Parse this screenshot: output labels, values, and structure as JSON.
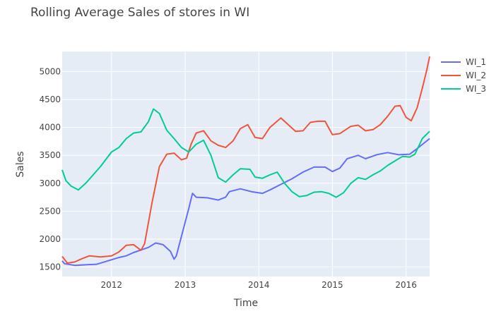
{
  "chart_data": {
    "type": "line",
    "title": "Rolling Average Sales of stores in WI",
    "xlabel": "Time",
    "ylabel": "Sales",
    "xlim": [
      2011.33,
      2016.32
    ],
    "ylim": [
      1330,
      5360
    ],
    "xticks": [
      2012,
      2013,
      2014,
      2015,
      2016
    ],
    "xtick_labels": [
      "2012",
      "2013",
      "2014",
      "2015",
      "2016"
    ],
    "yticks": [
      1500,
      2000,
      2500,
      3000,
      3500,
      4000,
      4500,
      5000
    ],
    "ytick_labels": [
      "1500",
      "2000",
      "2500",
      "3000",
      "3500",
      "4000",
      "4500",
      "5000"
    ],
    "grid": true,
    "legend_position": "top-right",
    "background": "#E5ECF6",
    "series": [
      {
        "name": "WI_1",
        "color": "#636EFA",
        "points": [
          [
            2011.33,
            1610
          ],
          [
            2011.36,
            1560
          ],
          [
            2011.5,
            1530
          ],
          [
            2011.8,
            1550
          ],
          [
            2011.9,
            1590
          ],
          [
            2012.1,
            1670
          ],
          [
            2012.2,
            1700
          ],
          [
            2012.3,
            1760
          ],
          [
            2012.5,
            1850
          ],
          [
            2012.6,
            1930
          ],
          [
            2012.7,
            1900
          ],
          [
            2012.8,
            1780
          ],
          [
            2012.85,
            1640
          ],
          [
            2012.88,
            1700
          ],
          [
            2012.95,
            2050
          ],
          [
            2013.05,
            2550
          ],
          [
            2013.1,
            2820
          ],
          [
            2013.15,
            2750
          ],
          [
            2013.3,
            2740
          ],
          [
            2013.45,
            2700
          ],
          [
            2013.55,
            2750
          ],
          [
            2013.6,
            2850
          ],
          [
            2013.75,
            2900
          ],
          [
            2013.9,
            2850
          ],
          [
            2014.05,
            2820
          ],
          [
            2014.15,
            2880
          ],
          [
            2014.3,
            2980
          ],
          [
            2014.45,
            3080
          ],
          [
            2014.6,
            3200
          ],
          [
            2014.75,
            3290
          ],
          [
            2014.9,
            3290
          ],
          [
            2015.0,
            3210
          ],
          [
            2015.1,
            3270
          ],
          [
            2015.2,
            3440
          ],
          [
            2015.35,
            3500
          ],
          [
            2015.45,
            3440
          ],
          [
            2015.6,
            3510
          ],
          [
            2015.75,
            3550
          ],
          [
            2015.9,
            3510
          ],
          [
            2016.05,
            3520
          ],
          [
            2016.15,
            3620
          ],
          [
            2016.32,
            3800
          ]
        ]
      },
      {
        "name": "WI_2",
        "color": "#EF553B",
        "points": [
          [
            2011.33,
            1690
          ],
          [
            2011.4,
            1570
          ],
          [
            2011.5,
            1590
          ],
          [
            2011.6,
            1650
          ],
          [
            2011.7,
            1700
          ],
          [
            2011.85,
            1680
          ],
          [
            2012.0,
            1700
          ],
          [
            2012.1,
            1770
          ],
          [
            2012.2,
            1890
          ],
          [
            2012.3,
            1900
          ],
          [
            2012.4,
            1800
          ],
          [
            2012.45,
            1920
          ],
          [
            2012.55,
            2650
          ],
          [
            2012.65,
            3300
          ],
          [
            2012.75,
            3520
          ],
          [
            2012.85,
            3540
          ],
          [
            2012.95,
            3420
          ],
          [
            2013.02,
            3450
          ],
          [
            2013.08,
            3700
          ],
          [
            2013.15,
            3900
          ],
          [
            2013.25,
            3940
          ],
          [
            2013.35,
            3760
          ],
          [
            2013.45,
            3680
          ],
          [
            2013.55,
            3640
          ],
          [
            2013.65,
            3760
          ],
          [
            2013.75,
            3980
          ],
          [
            2013.85,
            4050
          ],
          [
            2013.95,
            3820
          ],
          [
            2014.05,
            3800
          ],
          [
            2014.15,
            4000
          ],
          [
            2014.3,
            4170
          ],
          [
            2014.4,
            4050
          ],
          [
            2014.5,
            3930
          ],
          [
            2014.6,
            3940
          ],
          [
            2014.7,
            4090
          ],
          [
            2014.8,
            4110
          ],
          [
            2014.9,
            4110
          ],
          [
            2015.0,
            3870
          ],
          [
            2015.1,
            3890
          ],
          [
            2015.25,
            4020
          ],
          [
            2015.35,
            4040
          ],
          [
            2015.45,
            3940
          ],
          [
            2015.55,
            3960
          ],
          [
            2015.65,
            4050
          ],
          [
            2015.75,
            4200
          ],
          [
            2015.85,
            4380
          ],
          [
            2015.92,
            4390
          ],
          [
            2016.0,
            4180
          ],
          [
            2016.07,
            4120
          ],
          [
            2016.15,
            4350
          ],
          [
            2016.22,
            4700
          ],
          [
            2016.28,
            5020
          ],
          [
            2016.32,
            5270
          ]
        ]
      },
      {
        "name": "WI_3",
        "color": "#00CC96",
        "points": [
          [
            2011.33,
            3240
          ],
          [
            2011.38,
            3050
          ],
          [
            2011.45,
            2950
          ],
          [
            2011.55,
            2880
          ],
          [
            2011.65,
            3000
          ],
          [
            2011.75,
            3150
          ],
          [
            2011.85,
            3300
          ],
          [
            2012.0,
            3560
          ],
          [
            2012.1,
            3640
          ],
          [
            2012.2,
            3800
          ],
          [
            2012.3,
            3900
          ],
          [
            2012.4,
            3920
          ],
          [
            2012.5,
            4100
          ],
          [
            2012.57,
            4330
          ],
          [
            2012.65,
            4250
          ],
          [
            2012.75,
            3950
          ],
          [
            2012.85,
            3800
          ],
          [
            2012.95,
            3640
          ],
          [
            2013.05,
            3560
          ],
          [
            2013.15,
            3700
          ],
          [
            2013.25,
            3770
          ],
          [
            2013.35,
            3500
          ],
          [
            2013.45,
            3100
          ],
          [
            2013.55,
            3020
          ],
          [
            2013.65,
            3150
          ],
          [
            2013.75,
            3260
          ],
          [
            2013.88,
            3250
          ],
          [
            2013.95,
            3110
          ],
          [
            2014.05,
            3090
          ],
          [
            2014.15,
            3150
          ],
          [
            2014.25,
            3200
          ],
          [
            2014.35,
            3000
          ],
          [
            2014.45,
            2850
          ],
          [
            2014.55,
            2760
          ],
          [
            2014.65,
            2780
          ],
          [
            2014.75,
            2840
          ],
          [
            2014.85,
            2850
          ],
          [
            2014.95,
            2820
          ],
          [
            2015.05,
            2750
          ],
          [
            2015.15,
            2830
          ],
          [
            2015.25,
            3000
          ],
          [
            2015.35,
            3100
          ],
          [
            2015.45,
            3070
          ],
          [
            2015.55,
            3150
          ],
          [
            2015.65,
            3220
          ],
          [
            2015.75,
            3320
          ],
          [
            2015.85,
            3400
          ],
          [
            2015.95,
            3480
          ],
          [
            2016.05,
            3470
          ],
          [
            2016.12,
            3520
          ],
          [
            2016.22,
            3800
          ],
          [
            2016.32,
            3930
          ]
        ]
      }
    ]
  }
}
